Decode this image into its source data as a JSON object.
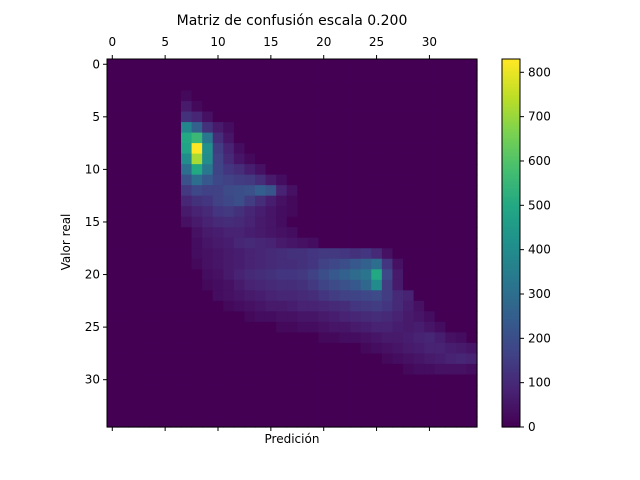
{
  "chart_data": {
    "type": "heatmap",
    "title": "Matriz de confusión escala 0.200",
    "xlabel": "Predición",
    "ylabel": "Valor real",
    "n_rows": 35,
    "n_cols": 35,
    "x_ticks": [
      0,
      5,
      10,
      15,
      20,
      25,
      30
    ],
    "x_tick_labels_position": "top",
    "y_ticks": [
      0,
      5,
      10,
      15,
      20,
      25,
      30
    ],
    "colorbar": {
      "ticks": [
        0,
        100,
        200,
        300,
        400,
        500,
        600,
        700,
        800
      ],
      "vmin": 0,
      "vmax": 830,
      "colormap": "viridis",
      "placement": "right"
    },
    "grid": false,
    "cells": [
      [
        3,
        7,
        20
      ],
      [
        4,
        7,
        60
      ],
      [
        4,
        8,
        20
      ],
      [
        5,
        7,
        120
      ],
      [
        5,
        8,
        90
      ],
      [
        5,
        9,
        40
      ],
      [
        6,
        7,
        380
      ],
      [
        6,
        8,
        260
      ],
      [
        6,
        9,
        120
      ],
      [
        6,
        10,
        60
      ],
      [
        6,
        11,
        30
      ],
      [
        7,
        7,
        500
      ],
      [
        7,
        8,
        560
      ],
      [
        7,
        9,
        330
      ],
      [
        7,
        10,
        110
      ],
      [
        7,
        11,
        50
      ],
      [
        8,
        7,
        480
      ],
      [
        8,
        8,
        830
      ],
      [
        8,
        9,
        410
      ],
      [
        8,
        10,
        150
      ],
      [
        8,
        11,
        80
      ],
      [
        8,
        12,
        30
      ],
      [
        9,
        7,
        400
      ],
      [
        9,
        8,
        720
      ],
      [
        9,
        9,
        400
      ],
      [
        9,
        10,
        160
      ],
      [
        9,
        11,
        100
      ],
      [
        9,
        12,
        50
      ],
      [
        9,
        13,
        20
      ],
      [
        10,
        7,
        300
      ],
      [
        10,
        8,
        500
      ],
      [
        10,
        9,
        330
      ],
      [
        10,
        10,
        170
      ],
      [
        10,
        11,
        130
      ],
      [
        10,
        12,
        110
      ],
      [
        10,
        13,
        70
      ],
      [
        10,
        14,
        40
      ],
      [
        11,
        7,
        210
      ],
      [
        11,
        8,
        300
      ],
      [
        11,
        9,
        230
      ],
      [
        11,
        10,
        180
      ],
      [
        11,
        11,
        160
      ],
      [
        11,
        12,
        150
      ],
      [
        11,
        13,
        140
      ],
      [
        11,
        14,
        110
      ],
      [
        11,
        15,
        60
      ],
      [
        11,
        16,
        30
      ],
      [
        12,
        7,
        140
      ],
      [
        12,
        8,
        180
      ],
      [
        12,
        9,
        160
      ],
      [
        12,
        10,
        160
      ],
      [
        12,
        11,
        190
      ],
      [
        12,
        12,
        200
      ],
      [
        12,
        13,
        210
      ],
      [
        12,
        14,
        250
      ],
      [
        12,
        15,
        220
      ],
      [
        12,
        16,
        80
      ],
      [
        12,
        17,
        40
      ],
      [
        13,
        7,
        90
      ],
      [
        13,
        8,
        120
      ],
      [
        13,
        9,
        130
      ],
      [
        13,
        10,
        160
      ],
      [
        13,
        11,
        180
      ],
      [
        13,
        12,
        200
      ],
      [
        13,
        13,
        150
      ],
      [
        13,
        14,
        110
      ],
      [
        13,
        15,
        70
      ],
      [
        13,
        16,
        40
      ],
      [
        13,
        17,
        20
      ],
      [
        14,
        7,
        60
      ],
      [
        14,
        8,
        80
      ],
      [
        14,
        9,
        100
      ],
      [
        14,
        10,
        130
      ],
      [
        14,
        11,
        140
      ],
      [
        14,
        12,
        120
      ],
      [
        14,
        13,
        90
      ],
      [
        14,
        14,
        70
      ],
      [
        14,
        15,
        50
      ],
      [
        14,
        16,
        30
      ],
      [
        14,
        17,
        20
      ],
      [
        15,
        7,
        40
      ],
      [
        15,
        8,
        60
      ],
      [
        15,
        9,
        80
      ],
      [
        15,
        10,
        100
      ],
      [
        15,
        11,
        110
      ],
      [
        15,
        12,
        100
      ],
      [
        15,
        13,
        80
      ],
      [
        15,
        14,
        60
      ],
      [
        15,
        15,
        50
      ],
      [
        15,
        16,
        30
      ],
      [
        16,
        8,
        40
      ],
      [
        16,
        9,
        60
      ],
      [
        16,
        10,
        70
      ],
      [
        16,
        11,
        80
      ],
      [
        16,
        12,
        80
      ],
      [
        16,
        13,
        70
      ],
      [
        16,
        14,
        60
      ],
      [
        16,
        15,
        50
      ],
      [
        16,
        16,
        40
      ],
      [
        16,
        17,
        30
      ],
      [
        17,
        8,
        30
      ],
      [
        17,
        9,
        50
      ],
      [
        17,
        10,
        60
      ],
      [
        17,
        11,
        70
      ],
      [
        17,
        12,
        90
      ],
      [
        17,
        13,
        100
      ],
      [
        17,
        14,
        90
      ],
      [
        17,
        15,
        80
      ],
      [
        17,
        16,
        60
      ],
      [
        17,
        17,
        50
      ],
      [
        17,
        18,
        40
      ],
      [
        17,
        19,
        30
      ],
      [
        18,
        8,
        30
      ],
      [
        18,
        9,
        40
      ],
      [
        18,
        10,
        50
      ],
      [
        18,
        11,
        60
      ],
      [
        18,
        12,
        70
      ],
      [
        18,
        13,
        80
      ],
      [
        18,
        14,
        90
      ],
      [
        18,
        15,
        100
      ],
      [
        18,
        16,
        110
      ],
      [
        18,
        17,
        120
      ],
      [
        18,
        18,
        120
      ],
      [
        18,
        19,
        130
      ],
      [
        18,
        20,
        140
      ],
      [
        18,
        21,
        140
      ],
      [
        18,
        22,
        130
      ],
      [
        18,
        23,
        120
      ],
      [
        18,
        24,
        130
      ],
      [
        18,
        25,
        100
      ],
      [
        18,
        26,
        40
      ],
      [
        19,
        8,
        20
      ],
      [
        19,
        9,
        40
      ],
      [
        19,
        10,
        50
      ],
      [
        19,
        11,
        60
      ],
      [
        19,
        12,
        70
      ],
      [
        19,
        13,
        80
      ],
      [
        19,
        14,
        90
      ],
      [
        19,
        15,
        100
      ],
      [
        19,
        16,
        110
      ],
      [
        19,
        17,
        110
      ],
      [
        19,
        18,
        120
      ],
      [
        19,
        19,
        130
      ],
      [
        19,
        20,
        160
      ],
      [
        19,
        21,
        180
      ],
      [
        19,
        22,
        200
      ],
      [
        19,
        23,
        230
      ],
      [
        19,
        24,
        260
      ],
      [
        19,
        25,
        300
      ],
      [
        19,
        26,
        130
      ],
      [
        19,
        27,
        40
      ],
      [
        20,
        9,
        30
      ],
      [
        20,
        10,
        40
      ],
      [
        20,
        11,
        60
      ],
      [
        20,
        12,
        80
      ],
      [
        20,
        13,
        100
      ],
      [
        20,
        14,
        110
      ],
      [
        20,
        15,
        120
      ],
      [
        20,
        16,
        130
      ],
      [
        20,
        17,
        130
      ],
      [
        20,
        18,
        140
      ],
      [
        20,
        19,
        160
      ],
      [
        20,
        20,
        200
      ],
      [
        20,
        21,
        230
      ],
      [
        20,
        22,
        260
      ],
      [
        20,
        23,
        290
      ],
      [
        20,
        24,
        320
      ],
      [
        20,
        25,
        500
      ],
      [
        20,
        26,
        180
      ],
      [
        20,
        27,
        60
      ],
      [
        21,
        9,
        20
      ],
      [
        21,
        10,
        30
      ],
      [
        21,
        11,
        40
      ],
      [
        21,
        12,
        60
      ],
      [
        21,
        13,
        80
      ],
      [
        21,
        14,
        90
      ],
      [
        21,
        15,
        100
      ],
      [
        21,
        16,
        110
      ],
      [
        21,
        17,
        110
      ],
      [
        21,
        18,
        120
      ],
      [
        21,
        19,
        140
      ],
      [
        21,
        20,
        170
      ],
      [
        21,
        21,
        190
      ],
      [
        21,
        22,
        210
      ],
      [
        21,
        23,
        230
      ],
      [
        21,
        24,
        280
      ],
      [
        21,
        25,
        400
      ],
      [
        21,
        26,
        150
      ],
      [
        21,
        27,
        60
      ],
      [
        22,
        10,
        30
      ],
      [
        22,
        11,
        40
      ],
      [
        22,
        12,
        50
      ],
      [
        22,
        13,
        60
      ],
      [
        22,
        14,
        70
      ],
      [
        22,
        15,
        80
      ],
      [
        22,
        16,
        90
      ],
      [
        22,
        17,
        90
      ],
      [
        22,
        18,
        100
      ],
      [
        22,
        19,
        110
      ],
      [
        22,
        20,
        130
      ],
      [
        22,
        21,
        150
      ],
      [
        22,
        22,
        160
      ],
      [
        22,
        23,
        170
      ],
      [
        22,
        24,
        180
      ],
      [
        22,
        25,
        190
      ],
      [
        22,
        26,
        150
      ],
      [
        22,
        27,
        100
      ],
      [
        22,
        28,
        80
      ],
      [
        23,
        11,
        20
      ],
      [
        23,
        12,
        30
      ],
      [
        23,
        13,
        40
      ],
      [
        23,
        14,
        50
      ],
      [
        23,
        15,
        60
      ],
      [
        23,
        16,
        60
      ],
      [
        23,
        17,
        70
      ],
      [
        23,
        18,
        80
      ],
      [
        23,
        19,
        80
      ],
      [
        23,
        20,
        90
      ],
      [
        23,
        21,
        100
      ],
      [
        23,
        22,
        110
      ],
      [
        23,
        23,
        130
      ],
      [
        23,
        24,
        140
      ],
      [
        23,
        25,
        150
      ],
      [
        23,
        26,
        130
      ],
      [
        23,
        27,
        100
      ],
      [
        23,
        28,
        70
      ],
      [
        23,
        29,
        40
      ],
      [
        24,
        13,
        20
      ],
      [
        24,
        14,
        30
      ],
      [
        24,
        15,
        30
      ],
      [
        24,
        16,
        40
      ],
      [
        24,
        17,
        40
      ],
      [
        24,
        18,
        50
      ],
      [
        24,
        19,
        50
      ],
      [
        24,
        20,
        60
      ],
      [
        24,
        21,
        70
      ],
      [
        24,
        22,
        80
      ],
      [
        24,
        23,
        90
      ],
      [
        24,
        24,
        100
      ],
      [
        24,
        25,
        110
      ],
      [
        24,
        26,
        100
      ],
      [
        24,
        27,
        80
      ],
      [
        24,
        28,
        60
      ],
      [
        24,
        29,
        50
      ],
      [
        24,
        30,
        30
      ],
      [
        25,
        16,
        20
      ],
      [
        25,
        17,
        20
      ],
      [
        25,
        18,
        30
      ],
      [
        25,
        19,
        30
      ],
      [
        25,
        20,
        40
      ],
      [
        25,
        21,
        50
      ],
      [
        25,
        22,
        50
      ],
      [
        25,
        23,
        60
      ],
      [
        25,
        24,
        70
      ],
      [
        25,
        25,
        80
      ],
      [
        25,
        26,
        80
      ],
      [
        25,
        27,
        70
      ],
      [
        25,
        28,
        60
      ],
      [
        25,
        29,
        70
      ],
      [
        25,
        30,
        50
      ],
      [
        25,
        31,
        30
      ],
      [
        26,
        20,
        20
      ],
      [
        26,
        21,
        20
      ],
      [
        26,
        22,
        30
      ],
      [
        26,
        23,
        30
      ],
      [
        26,
        24,
        40
      ],
      [
        26,
        25,
        50
      ],
      [
        26,
        26,
        60
      ],
      [
        26,
        27,
        60
      ],
      [
        26,
        28,
        70
      ],
      [
        26,
        29,
        80
      ],
      [
        26,
        30,
        90
      ],
      [
        26,
        31,
        70
      ],
      [
        26,
        32,
        40
      ],
      [
        26,
        33,
        30
      ],
      [
        27,
        24,
        20
      ],
      [
        27,
        25,
        30
      ],
      [
        27,
        26,
        40
      ],
      [
        27,
        27,
        50
      ],
      [
        27,
        28,
        60
      ],
      [
        27,
        29,
        70
      ],
      [
        27,
        30,
        80
      ],
      [
        27,
        31,
        80
      ],
      [
        27,
        32,
        70
      ],
      [
        27,
        33,
        60
      ],
      [
        27,
        34,
        50
      ],
      [
        28,
        26,
        20
      ],
      [
        28,
        27,
        30
      ],
      [
        28,
        28,
        40
      ],
      [
        28,
        29,
        50
      ],
      [
        28,
        30,
        60
      ],
      [
        28,
        31,
        70
      ],
      [
        28,
        32,
        80
      ],
      [
        28,
        33,
        90
      ],
      [
        28,
        34,
        80
      ],
      [
        29,
        28,
        20
      ],
      [
        29,
        29,
        30
      ],
      [
        29,
        30,
        30
      ],
      [
        29,
        31,
        40
      ],
      [
        29,
        32,
        40
      ],
      [
        29,
        33,
        40
      ],
      [
        29,
        34,
        30
      ]
    ]
  }
}
